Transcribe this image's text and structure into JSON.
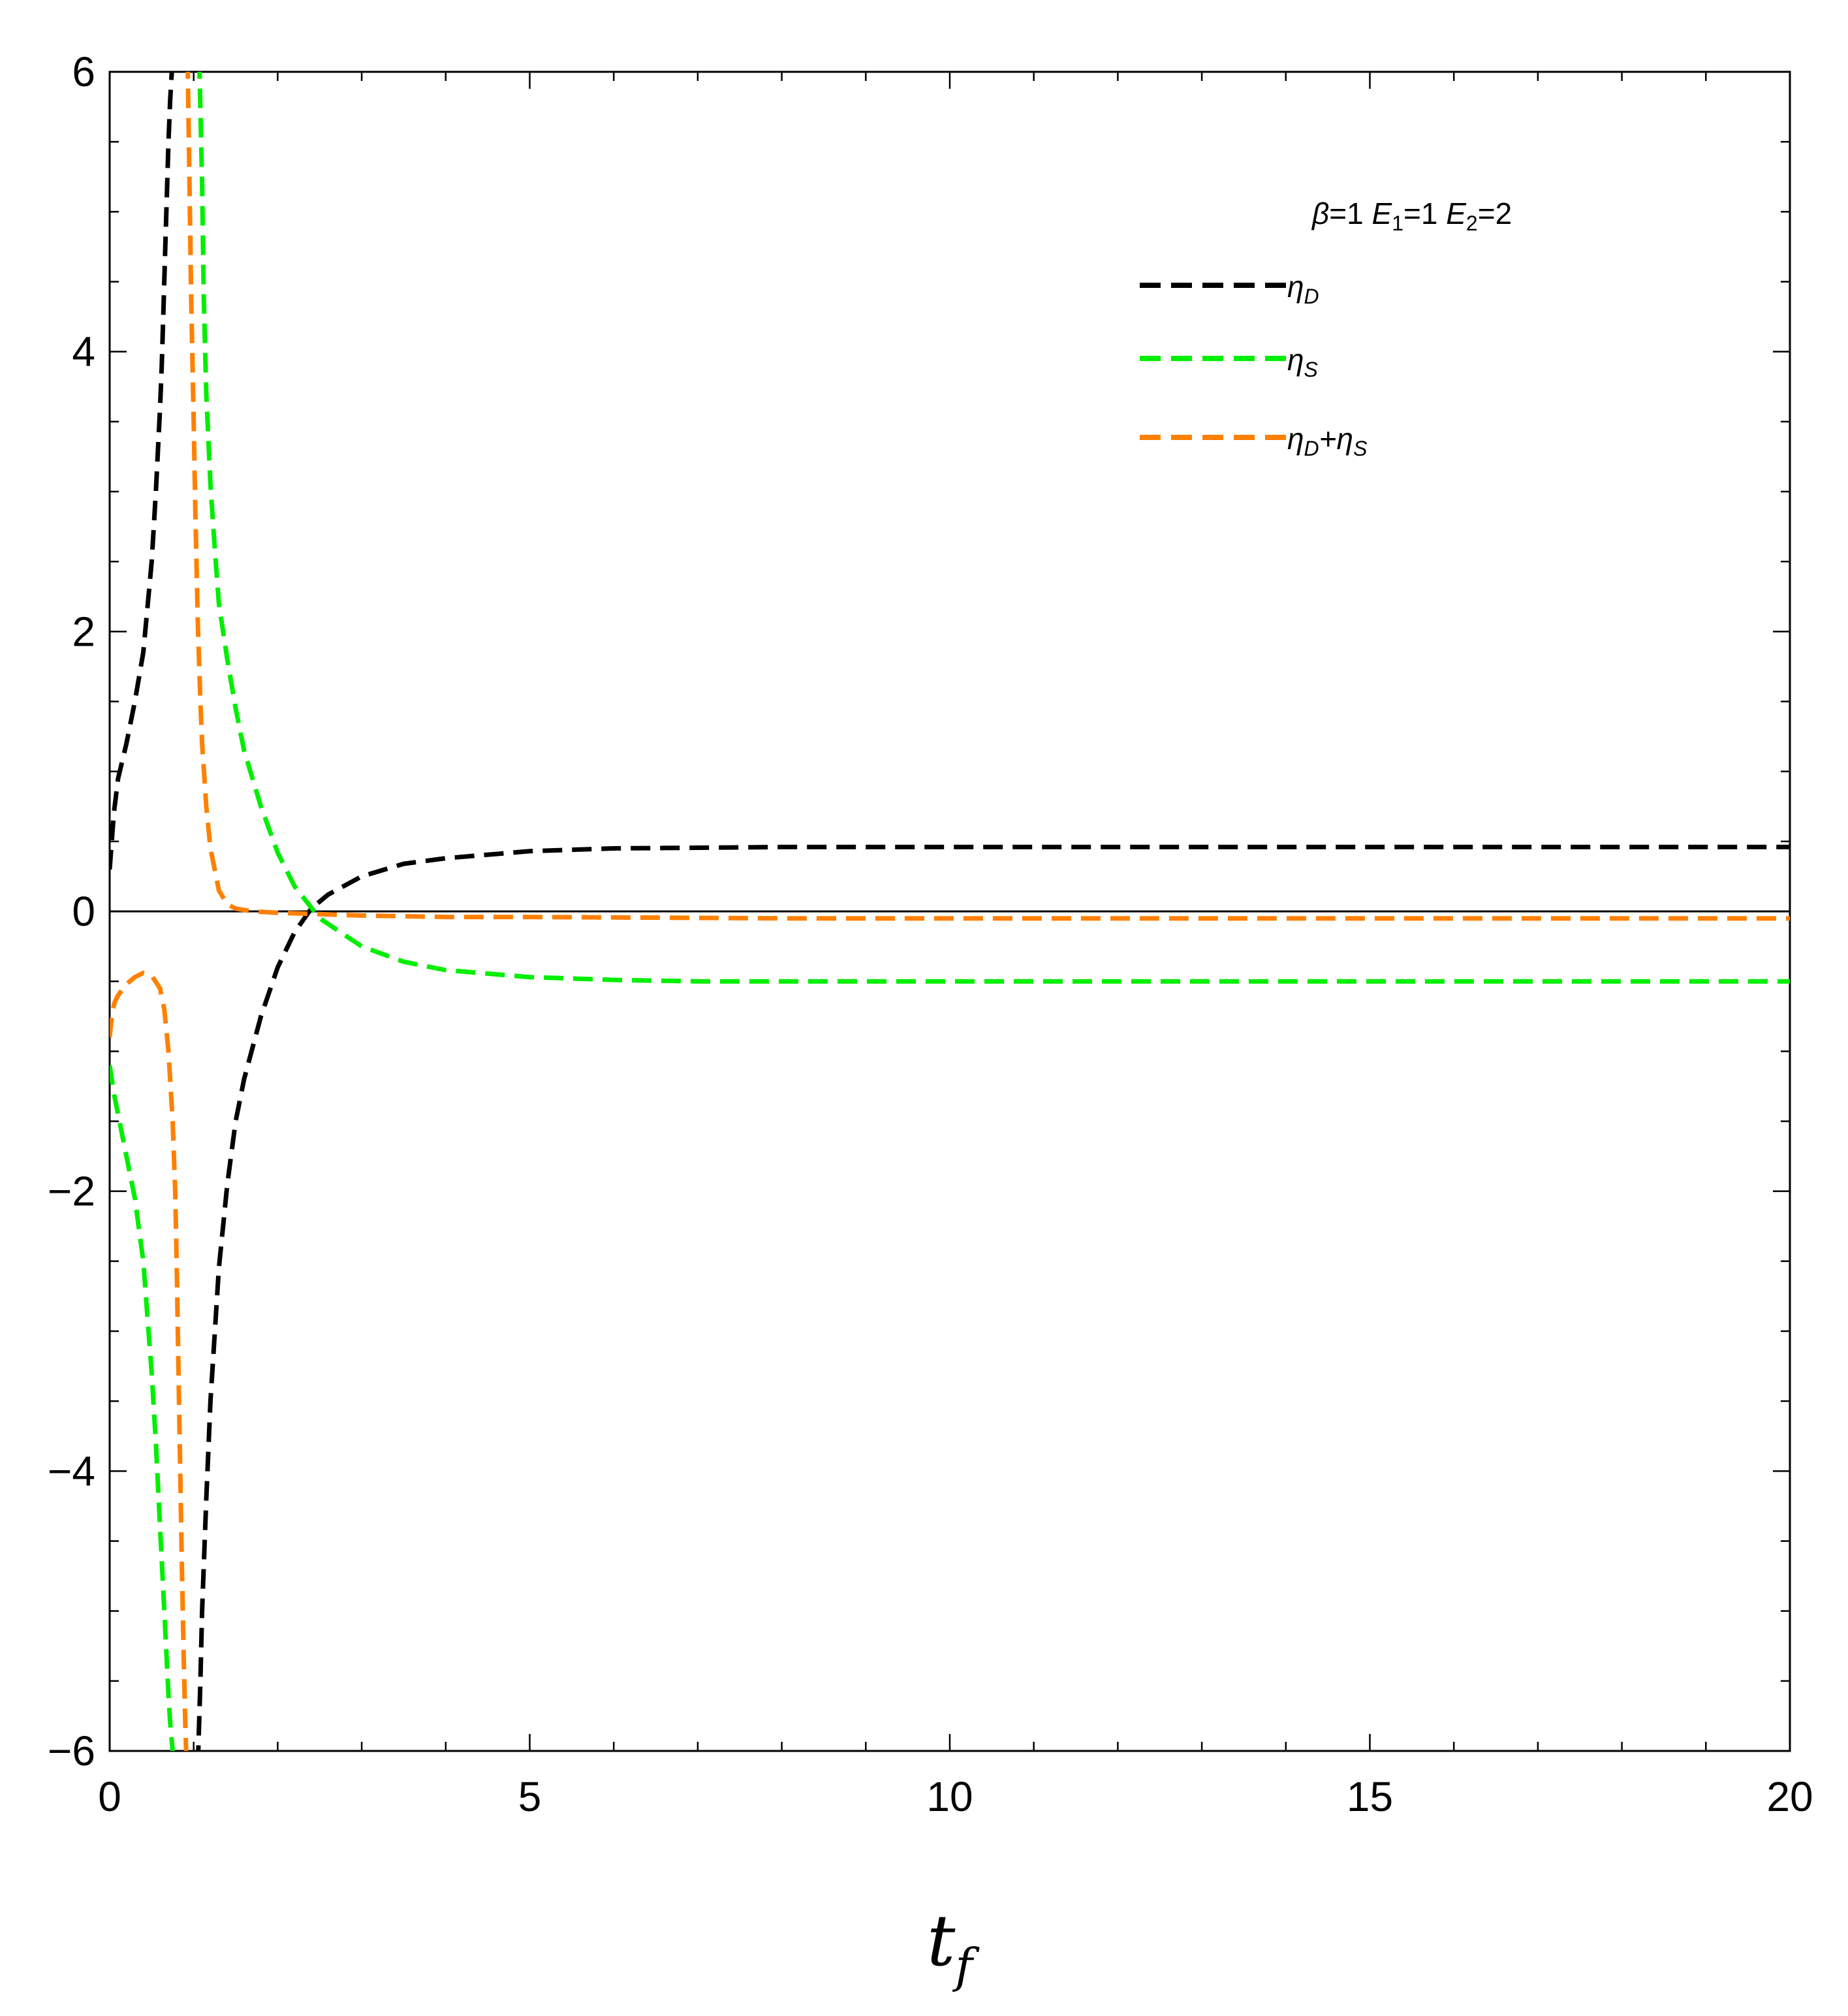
{
  "chart_data": {
    "type": "line",
    "xlabel": "t",
    "xlabel_sub": "f",
    "ylabel": "",
    "xlim": [
      0,
      20
    ],
    "ylim": [
      -6,
      6
    ],
    "x_ticks": [
      0,
      5,
      10,
      15,
      20
    ],
    "y_ticks": [
      -6,
      -4,
      -2,
      0,
      2,
      4,
      6
    ],
    "x_tick_labels": [
      "0",
      "5",
      "10",
      "15",
      "20"
    ],
    "y_tick_labels": [
      "−6",
      "−4",
      "−2",
      "0",
      "2",
      "4",
      "6"
    ],
    "x_minor_step": 1,
    "y_minor_step": 0.5,
    "grid": false,
    "zero_line": true,
    "legend_position": "top-right",
    "annotation": {
      "beta": "β",
      "beta_val": "=1  ",
      "e1": "E",
      "e1_sub": "1",
      "e1_val": "=1 ",
      "e2": "E",
      "e2_sub": "2",
      "e2_val": "=2"
    },
    "series": [
      {
        "name": "ηD",
        "legend_main": "η",
        "legend_sub": "D",
        "legend_extra": "",
        "legend_extra_sub": "",
        "color": "#000000",
        "segments": [
          {
            "x": [
              0,
              0.05,
              0.1,
              0.2,
              0.3,
              0.4,
              0.5,
              0.55,
              0.6,
              0.62,
              0.64,
              0.66,
              0.68,
              0.7,
              0.72,
              0.74,
              0.76
            ],
            "y": [
              0.3,
              0.7,
              0.95,
              1.2,
              1.5,
              1.85,
              2.5,
              3.0,
              3.6,
              3.9,
              4.3,
              4.7,
              5.1,
              5.5,
              5.8,
              6.0,
              6.3
            ]
          },
          {
            "x": [
              1.05,
              1.08,
              1.1,
              1.15,
              1.2,
              1.3,
              1.4,
              1.5,
              1.6,
              1.8,
              2.0,
              2.2,
              2.4,
              2.6,
              3.0,
              3.5,
              4.0,
              5.0,
              6.0,
              7.0,
              8.0,
              10.0,
              12.0,
              15.0,
              20.0
            ],
            "y": [
              -6.1,
              -5.5,
              -5.0,
              -4.2,
              -3.5,
              -2.55,
              -1.95,
              -1.5,
              -1.2,
              -0.75,
              -0.4,
              -0.15,
              0.02,
              0.12,
              0.25,
              0.34,
              0.38,
              0.43,
              0.45,
              0.455,
              0.46,
              0.46,
              0.46,
              0.46,
              0.46
            ]
          }
        ]
      },
      {
        "name": "ηS",
        "legend_main": "η",
        "legend_sub": "S",
        "legend_extra": "",
        "legend_extra_sub": "",
        "color": "#00ee00",
        "segments": [
          {
            "x": [
              0,
              0.05,
              0.1,
              0.2,
              0.3,
              0.4,
              0.45,
              0.5,
              0.55,
              0.6,
              0.65,
              0.7,
              0.72,
              0.75,
              0.78,
              0.8
            ],
            "y": [
              -1.1,
              -1.3,
              -1.45,
              -1.75,
              -2.05,
              -2.5,
              -2.9,
              -3.3,
              -3.8,
              -4.4,
              -5.0,
              -5.6,
              -5.8,
              -6.0,
              -6.2,
              -6.3
            ]
          },
          {
            "x": [
              1.05,
              1.07,
              1.1,
              1.12,
              1.15,
              1.2,
              1.25,
              1.3,
              1.4,
              1.5,
              1.6,
              1.8,
              2.0,
              2.2,
              2.5,
              3.0,
              3.5,
              4.0,
              5.0,
              6.0,
              7.0,
              8.0,
              10.0,
              12.0,
              15.0,
              20.0
            ],
            "y": [
              6.3,
              6.0,
              5.2,
              4.4,
              3.7,
              3.05,
              2.6,
              2.2,
              1.8,
              1.45,
              1.15,
              0.75,
              0.42,
              0.18,
              -0.05,
              -0.25,
              -0.36,
              -0.42,
              -0.47,
              -0.49,
              -0.5,
              -0.5,
              -0.5,
              -0.5,
              -0.5,
              -0.5
            ]
          }
        ]
      },
      {
        "name": "ηD+ηS",
        "legend_main": "η",
        "legend_sub": "D",
        "legend_extra": "+η",
        "legend_extra_sub": "S",
        "color": "#ff8000",
        "segments": [
          {
            "x": [
              0,
              0.03,
              0.06,
              0.1,
              0.15,
              0.2,
              0.3,
              0.4,
              0.5,
              0.6,
              0.65,
              0.7,
              0.75,
              0.78,
              0.8,
              0.82,
              0.84,
              0.86,
              0.88,
              0.9,
              0.92
            ],
            "y": [
              -0.9,
              -0.72,
              -0.65,
              -0.6,
              -0.56,
              -0.52,
              -0.47,
              -0.44,
              -0.46,
              -0.55,
              -0.7,
              -1.0,
              -1.5,
              -2.0,
              -2.6,
              -3.3,
              -4.0,
              -4.7,
              -5.3,
              -5.8,
              -6.2
            ]
          },
          {
            "x": [
              0.92,
              0.93,
              0.95,
              0.97,
              1.0,
              1.02,
              1.05,
              1.08,
              1.1,
              1.15,
              1.2,
              1.3,
              1.4,
              1.5,
              1.7,
              2.0,
              2.5,
              3.0,
              4.0,
              5.0,
              8.0,
              12.0,
              16.0,
              20.0
            ],
            "y": [
              6.3,
              6.0,
              5.2,
              4.4,
              3.5,
              2.85,
              2.05,
              1.5,
              1.2,
              0.75,
              0.45,
              0.15,
              0.05,
              0.02,
              0.0,
              -0.01,
              -0.02,
              -0.03,
              -0.04,
              -0.04,
              -0.05,
              -0.05,
              -0.05,
              -0.05
            ]
          }
        ]
      }
    ]
  }
}
